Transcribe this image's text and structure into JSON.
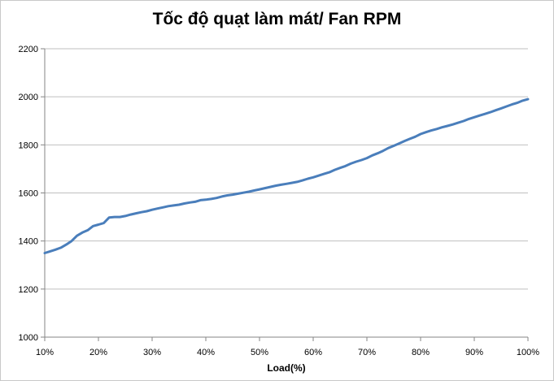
{
  "chart_data": {
    "type": "line",
    "title": "Tốc độ quạt làm mát/ Fan RPM",
    "xlabel": "Load(%)",
    "ylabel": "",
    "xlim": [
      10,
      100
    ],
    "ylim": [
      1000,
      2200
    ],
    "x_ticks": [
      "10%",
      "20%",
      "30%",
      "40%",
      "50%",
      "60%",
      "70%",
      "80%",
      "90%",
      "100%"
    ],
    "y_ticks": [
      "1000",
      "1200",
      "1400",
      "1600",
      "1800",
      "2000",
      "2200"
    ],
    "grid": "horizontal",
    "legend": "none",
    "colors": {
      "line": "#4a7ebb",
      "grid": "#bfbfbf",
      "axis": "#868686"
    },
    "series": [
      {
        "x": [
          10,
          11,
          12,
          13,
          14,
          15,
          16,
          17,
          18,
          19,
          20,
          21,
          22,
          23,
          24,
          25,
          26,
          27,
          28,
          29,
          30,
          31,
          32,
          33,
          34,
          35,
          36,
          37,
          38,
          39,
          40,
          41,
          42,
          43,
          44,
          45,
          46,
          47,
          48,
          49,
          50,
          51,
          52,
          53,
          54,
          55,
          56,
          57,
          58,
          59,
          60,
          61,
          62,
          63,
          64,
          65,
          66,
          67,
          68,
          69,
          70,
          71,
          72,
          73,
          74,
          75,
          76,
          77,
          78,
          79,
          80,
          81,
          82,
          83,
          84,
          85,
          86,
          87,
          88,
          89,
          90,
          91,
          92,
          93,
          94,
          95,
          96,
          97,
          98,
          99,
          100
        ],
        "values": [
          1350,
          1357,
          1364,
          1372,
          1385,
          1400,
          1422,
          1435,
          1445,
          1462,
          1468,
          1475,
          1498,
          1500,
          1500,
          1504,
          1510,
          1515,
          1520,
          1524,
          1530,
          1535,
          1540,
          1545,
          1548,
          1551,
          1556,
          1560,
          1563,
          1570,
          1572,
          1575,
          1579,
          1585,
          1590,
          1593,
          1597,
          1601,
          1605,
          1610,
          1615,
          1620,
          1625,
          1630,
          1634,
          1638,
          1642,
          1646,
          1652,
          1659,
          1665,
          1672,
          1679,
          1686,
          1696,
          1704,
          1712,
          1722,
          1730,
          1737,
          1745,
          1756,
          1765,
          1775,
          1787,
          1796,
          1806,
          1816,
          1825,
          1834,
          1845,
          1853,
          1860,
          1866,
          1873,
          1879,
          1885,
          1892,
          1899,
          1908,
          1915,
          1922,
          1929,
          1936,
          1944,
          1952,
          1960,
          1968,
          1975,
          1984,
          1990
        ]
      }
    ]
  }
}
